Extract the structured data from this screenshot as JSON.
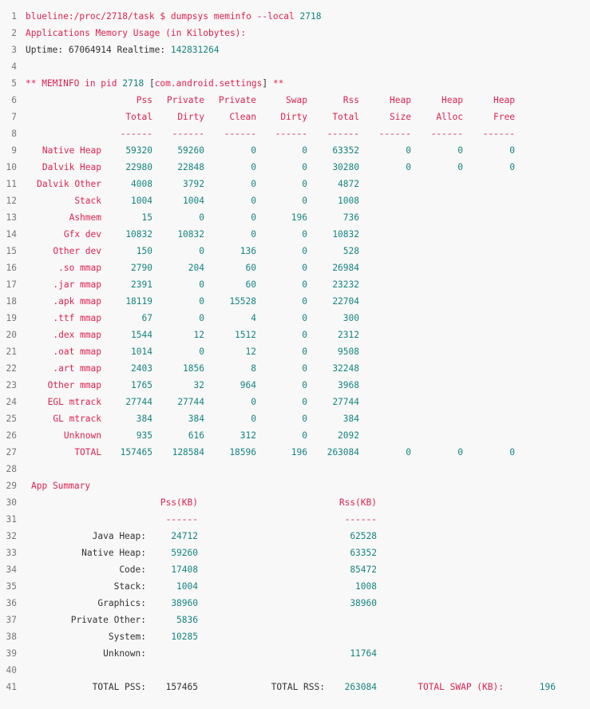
{
  "colors": {
    "keyword": "#dc2351",
    "number": "#168480",
    "text": "#333333",
    "line_number": "#777777",
    "background": "#f8f8f8"
  },
  "header_lines": [
    {
      "n": "1",
      "segments": [
        {
          "k": "kw",
          "t": "blueline:/proc/2718/task $ dumpsys meminfo --local "
        },
        {
          "k": "num",
          "t": "2718"
        }
      ]
    },
    {
      "n": "2",
      "segments": [
        {
          "k": "kw",
          "t": "Applications Memory Usage (in Kilobytes):"
        }
      ]
    },
    {
      "n": "3",
      "segments": [
        {
          "k": "plain",
          "t": "Uptime: 67064914 Realtime: "
        },
        {
          "k": "num",
          "t": "142831264"
        }
      ]
    },
    {
      "n": "4",
      "segments": []
    },
    {
      "n": "5",
      "segments": [
        {
          "k": "kw",
          "t": "** MEMINFO in pid "
        },
        {
          "k": "num",
          "t": "2718"
        },
        {
          "k": "plain",
          "t": " ["
        },
        {
          "k": "kw",
          "t": "com.android.settings"
        },
        {
          "k": "plain",
          "t": "] "
        },
        {
          "k": "kw",
          "t": "**"
        }
      ]
    }
  ],
  "table": {
    "header_line_numbers": [
      "6",
      "7",
      "8"
    ],
    "header_top": [
      "Pss",
      "Private",
      "Private",
      "Swap",
      "Rss",
      "Heap",
      "Heap",
      "Heap"
    ],
    "header_bottom": [
      "Total",
      "Dirty",
      "Clean",
      "Dirty",
      "Total",
      "Size",
      "Alloc",
      "Free"
    ],
    "separator": "------",
    "rows": [
      {
        "n": "9",
        "label": "Native Heap",
        "values": [
          "59320",
          "59260",
          "0",
          "0",
          "63352",
          "0",
          "0",
          "0"
        ]
      },
      {
        "n": "10",
        "label": "Dalvik Heap",
        "values": [
          "22980",
          "22848",
          "0",
          "0",
          "30280",
          "0",
          "0",
          "0"
        ]
      },
      {
        "n": "11",
        "label": "Dalvik Other",
        "values": [
          "4008",
          "3792",
          "0",
          "0",
          "4872"
        ]
      },
      {
        "n": "12",
        "label": "Stack",
        "values": [
          "1004",
          "1004",
          "0",
          "0",
          "1008"
        ]
      },
      {
        "n": "13",
        "label": "Ashmem",
        "values": [
          "15",
          "0",
          "0",
          "196",
          "736"
        ]
      },
      {
        "n": "14",
        "label": "Gfx dev",
        "values": [
          "10832",
          "10832",
          "0",
          "0",
          "10832"
        ]
      },
      {
        "n": "15",
        "label": "Other dev",
        "values": [
          "150",
          "0",
          "136",
          "0",
          "528"
        ]
      },
      {
        "n": "16",
        "label": ".so mmap",
        "values": [
          "2790",
          "204",
          "60",
          "0",
          "26984"
        ]
      },
      {
        "n": "17",
        "label": ".jar mmap",
        "values": [
          "2391",
          "0",
          "60",
          "0",
          "23232"
        ]
      },
      {
        "n": "18",
        "label": ".apk mmap",
        "values": [
          "18119",
          "0",
          "15528",
          "0",
          "22704"
        ]
      },
      {
        "n": "19",
        "label": ".ttf mmap",
        "values": [
          "67",
          "0",
          "4",
          "0",
          "300"
        ]
      },
      {
        "n": "20",
        "label": ".dex mmap",
        "values": [
          "1544",
          "12",
          "1512",
          "0",
          "2312"
        ]
      },
      {
        "n": "21",
        "label": ".oat mmap",
        "values": [
          "1014",
          "0",
          "12",
          "0",
          "9508"
        ]
      },
      {
        "n": "22",
        "label": ".art mmap",
        "values": [
          "2403",
          "1856",
          "8",
          "0",
          "32248"
        ]
      },
      {
        "n": "23",
        "label": "Other mmap",
        "values": [
          "1765",
          "32",
          "964",
          "0",
          "3968"
        ]
      },
      {
        "n": "24",
        "label": "EGL mtrack",
        "values": [
          "27744",
          "27744",
          "0",
          "0",
          "27744"
        ]
      },
      {
        "n": "25",
        "label": "GL mtrack",
        "values": [
          "384",
          "384",
          "0",
          "0",
          "384"
        ]
      },
      {
        "n": "26",
        "label": "Unknown",
        "values": [
          "935",
          "616",
          "312",
          "0",
          "2092"
        ]
      },
      {
        "n": "27",
        "label": "TOTAL",
        "values": [
          "157465",
          "128584",
          "18596",
          "196",
          "263084",
          "0",
          "0",
          "0"
        ]
      }
    ]
  },
  "blank_line_28": "28",
  "summary": {
    "title_n": "29",
    "title": "App Summary",
    "header_n": "30",
    "pss_header": "Pss(KB)",
    "rss_header": "Rss(KB)",
    "sep_n": "31",
    "separator": "------",
    "rows": [
      {
        "n": "32",
        "label": "Java Heap:",
        "pss": "24712",
        "rss": "62528"
      },
      {
        "n": "33",
        "label": "Native Heap:",
        "pss": "59260",
        "rss": "63352"
      },
      {
        "n": "34",
        "label": "Code:",
        "pss": "17408",
        "rss": "85472"
      },
      {
        "n": "35",
        "label": "Stack:",
        "pss": "1004",
        "rss": "1008"
      },
      {
        "n": "36",
        "label": "Graphics:",
        "pss": "38960",
        "rss": "38960"
      },
      {
        "n": "37",
        "label": "Private Other:",
        "pss": "5836",
        "rss": ""
      },
      {
        "n": "38",
        "label": "System:",
        "pss": "10285",
        "rss": ""
      },
      {
        "n": "39",
        "label": "Unknown:",
        "pss": "",
        "rss": "11764"
      }
    ],
    "blank_n": "40",
    "total_n": "41",
    "total_pss_label": "TOTAL PSS:",
    "total_pss": "157465",
    "total_rss_label": "TOTAL RSS:",
    "total_rss": "263084",
    "total_swap_label": "TOTAL SWAP (KB):",
    "total_swap": "196"
  }
}
